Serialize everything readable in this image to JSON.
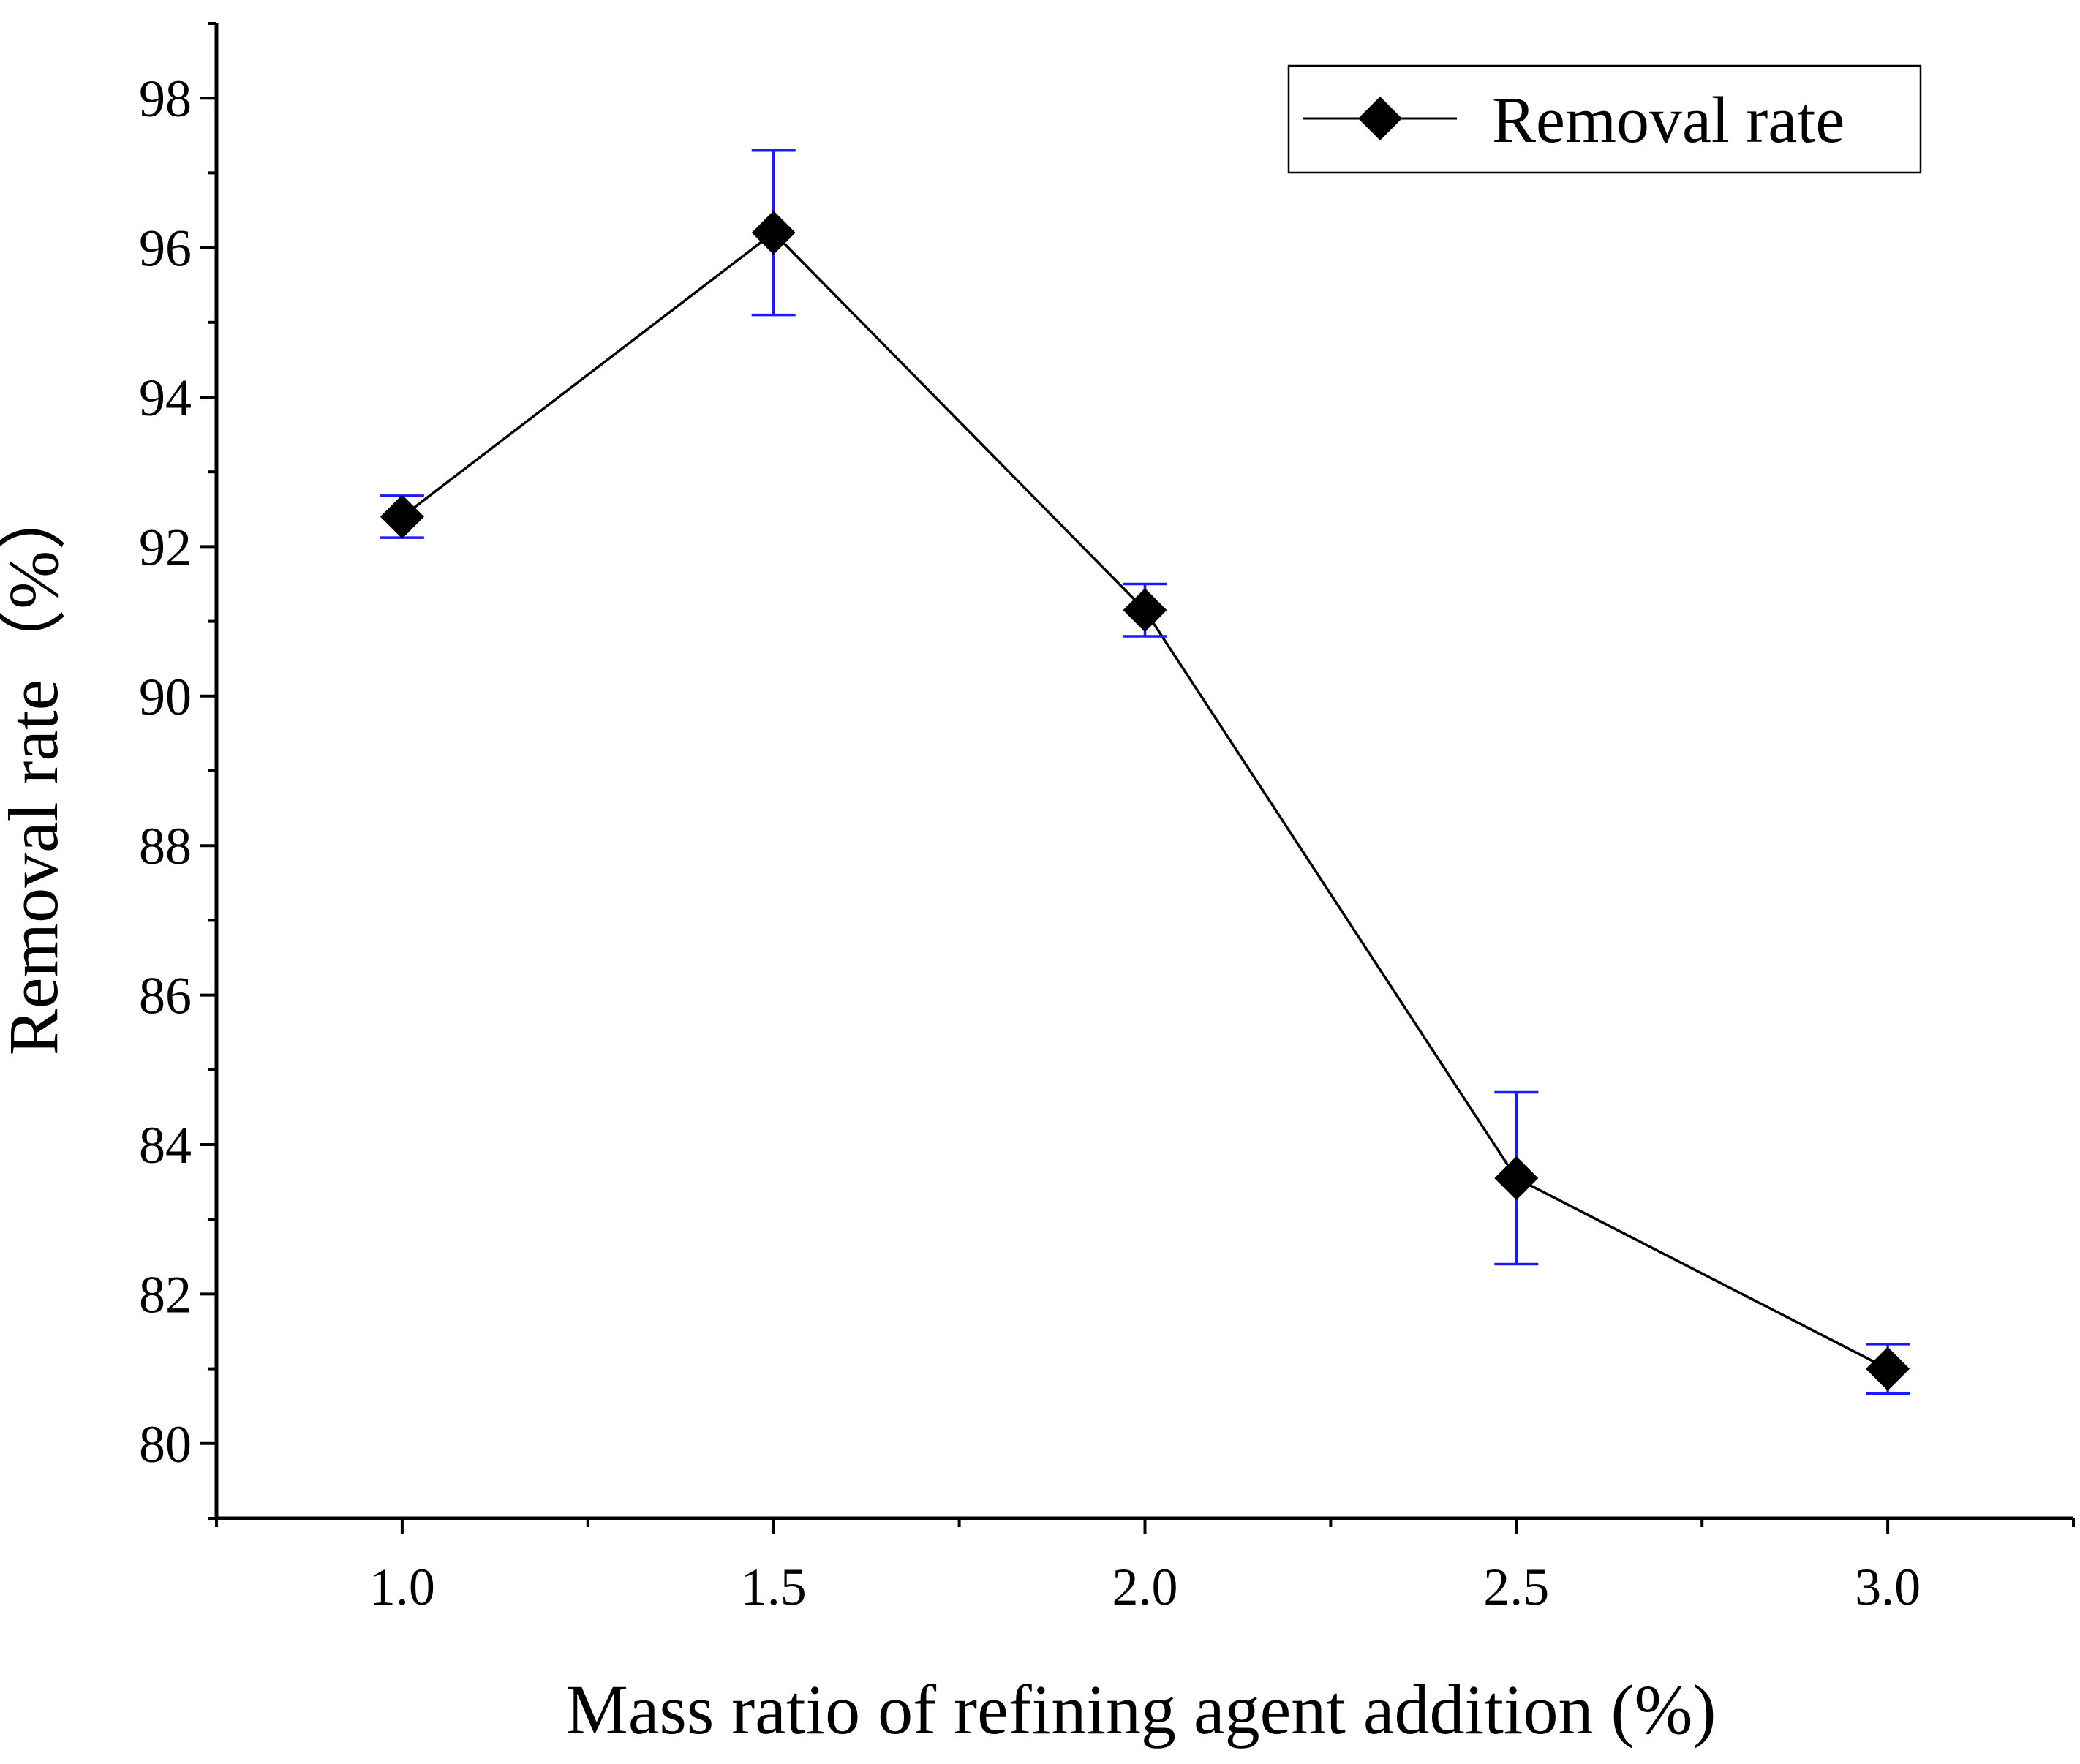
{
  "chart_data": {
    "type": "line",
    "title": "",
    "xlabel": "Mass ratio of refining agent addition (%)",
    "ylabel": "Removal rate（%）",
    "x_ticks": [
      "1.0",
      "1.5",
      "2.0",
      "2.5",
      "3.0"
    ],
    "y_ticks": [
      "80",
      "82",
      "84",
      "86",
      "88",
      "90",
      "92",
      "94",
      "96",
      "98"
    ],
    "xlim": [
      0.75,
      3.25
    ],
    "ylim": [
      79,
      99
    ],
    "grid": false,
    "legend_position": "top-right",
    "series": [
      {
        "name": "Removal rate",
        "marker": "diamond",
        "line_color": "#000000",
        "errorbar_color": "#1a1aff",
        "x": [
          1.0,
          1.5,
          2.0,
          2.5,
          3.0
        ],
        "y": [
          92.4,
          96.2,
          91.15,
          83.55,
          81.0
        ],
        "error": [
          0.28,
          1.1,
          0.35,
          1.15,
          0.33
        ]
      }
    ]
  }
}
